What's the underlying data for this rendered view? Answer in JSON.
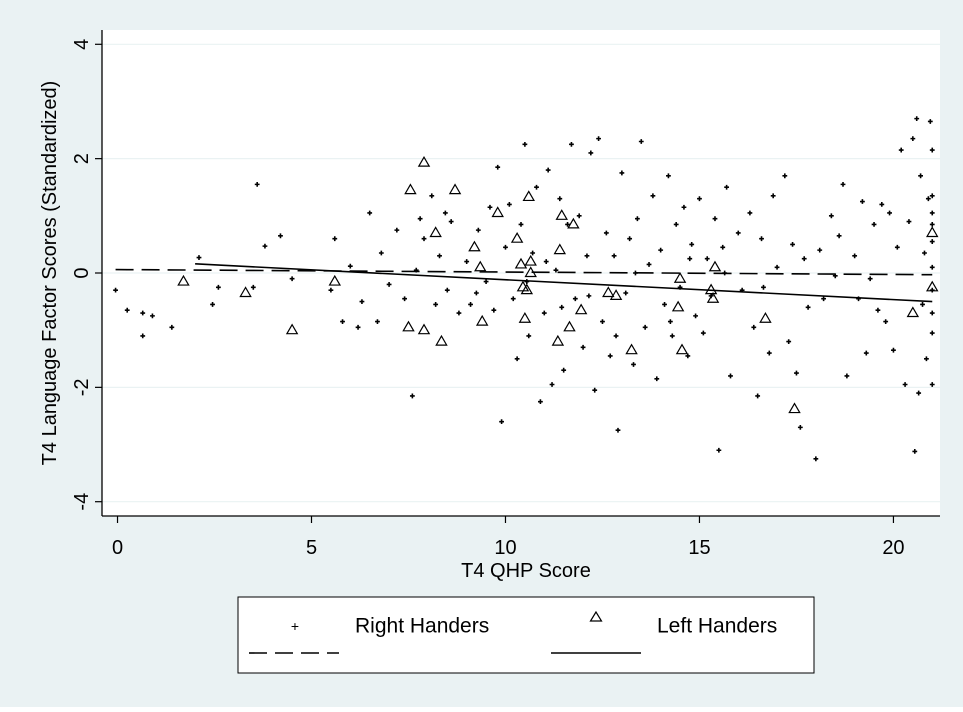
{
  "chart_data": {
    "type": "scatter",
    "xlabel": "T4 QHP Score",
    "ylabel": "T4 Language Factor Scores (Standardized)",
    "xlim": [
      -0.4,
      21.2
    ],
    "ylim": [
      -4.25,
      4.25
    ],
    "xticks": [
      0,
      5,
      10,
      15,
      20
    ],
    "yticks": [
      4,
      2,
      0,
      -2,
      -4
    ],
    "grid": true,
    "colors": {
      "outer_background": "#eaf2f3",
      "plot_background": "#ffffff",
      "grid": "#eaf2f3",
      "marks": "#000000"
    },
    "legend": {
      "placement": "bottom",
      "entries": [
        {
          "label": "Right Handers",
          "marker": "plus",
          "text": "Right Handers"
        },
        {
          "label": "Left Handers",
          "marker": "triangle",
          "text": "Left Handers"
        },
        {
          "label": "",
          "marker": "dashed-line"
        },
        {
          "label": "",
          "marker": "solid-line"
        }
      ]
    },
    "series": [
      {
        "name": "Right Handers",
        "marker": "plus",
        "points": [
          [
            -0.05,
            -0.3
          ],
          [
            0.25,
            -0.65
          ],
          [
            0.65,
            -1.1
          ],
          [
            0.65,
            -0.7
          ],
          [
            0.9,
            -0.75
          ],
          [
            1.4,
            -0.95
          ],
          [
            2.1,
            0.27
          ],
          [
            2.45,
            -0.55
          ],
          [
            2.6,
            -0.25
          ],
          [
            3.5,
            -0.25
          ],
          [
            3.6,
            1.55
          ],
          [
            3.8,
            0.47
          ],
          [
            4.2,
            0.65
          ],
          [
            4.5,
            -0.1
          ],
          [
            5.5,
            -0.3
          ],
          [
            5.6,
            0.6
          ],
          [
            5.8,
            -0.85
          ],
          [
            6.0,
            0.12
          ],
          [
            6.2,
            -0.95
          ],
          [
            6.3,
            -0.5
          ],
          [
            6.5,
            1.05
          ],
          [
            6.7,
            -0.85
          ],
          [
            6.8,
            0.35
          ],
          [
            7.0,
            -0.2
          ],
          [
            7.2,
            0.75
          ],
          [
            7.4,
            -0.45
          ],
          [
            7.6,
            -2.15
          ],
          [
            7.7,
            0.05
          ],
          [
            7.8,
            0.95
          ],
          [
            7.9,
            0.6
          ],
          [
            8.1,
            1.35
          ],
          [
            8.2,
            -0.55
          ],
          [
            8.3,
            0.3
          ],
          [
            8.5,
            -0.3
          ],
          [
            8.6,
            0.9
          ],
          [
            8.8,
            -0.7
          ],
          [
            9.0,
            0.2
          ],
          [
            9.1,
            -0.55
          ],
          [
            9.3,
            0.75
          ],
          [
            9.5,
            -0.15
          ],
          [
            9.6,
            1.15
          ],
          [
            9.7,
            -0.65
          ],
          [
            9.8,
            1.85
          ],
          [
            9.9,
            -2.6
          ],
          [
            10.0,
            0.45
          ],
          [
            10.1,
            1.2
          ],
          [
            10.2,
            -0.45
          ],
          [
            10.3,
            -1.5
          ],
          [
            10.4,
            0.85
          ],
          [
            10.5,
            2.25
          ],
          [
            10.6,
            -1.1
          ],
          [
            10.7,
            0.35
          ],
          [
            10.8,
            1.5
          ],
          [
            10.9,
            -2.25
          ],
          [
            11.0,
            -0.7
          ],
          [
            11.1,
            1.8
          ],
          [
            11.2,
            -1.95
          ],
          [
            11.3,
            0.05
          ],
          [
            11.4,
            1.3
          ],
          [
            11.5,
            -1.7
          ],
          [
            11.6,
            0.85
          ],
          [
            11.7,
            2.25
          ],
          [
            11.8,
            -0.45
          ],
          [
            11.9,
            1.0
          ],
          [
            12.0,
            -1.3
          ],
          [
            12.1,
            0.3
          ],
          [
            12.2,
            2.1
          ],
          [
            12.3,
            -2.05
          ],
          [
            12.4,
            2.35
          ],
          [
            12.5,
            -0.85
          ],
          [
            12.6,
            0.7
          ],
          [
            12.7,
            -1.45
          ],
          [
            12.8,
            0.3
          ],
          [
            12.9,
            -2.75
          ],
          [
            13.0,
            1.75
          ],
          [
            13.1,
            -0.35
          ],
          [
            13.2,
            0.6
          ],
          [
            13.3,
            -1.6
          ],
          [
            13.4,
            0.95
          ],
          [
            13.5,
            2.3
          ],
          [
            13.6,
            -0.95
          ],
          [
            13.7,
            0.15
          ],
          [
            13.8,
            1.35
          ],
          [
            13.9,
            -1.85
          ],
          [
            14.0,
            0.4
          ],
          [
            14.1,
            -0.55
          ],
          [
            14.2,
            1.7
          ],
          [
            14.3,
            -1.1
          ],
          [
            14.4,
            0.85
          ],
          [
            14.5,
            -0.25
          ],
          [
            14.6,
            1.15
          ],
          [
            14.7,
            -1.45
          ],
          [
            14.8,
            0.5
          ],
          [
            14.9,
            -0.75
          ],
          [
            15.0,
            1.3
          ],
          [
            15.1,
            -1.05
          ],
          [
            15.2,
            0.25
          ],
          [
            15.3,
            -0.4
          ],
          [
            15.4,
            0.95
          ],
          [
            15.5,
            -3.1
          ],
          [
            15.6,
            0.45
          ],
          [
            15.7,
            1.5
          ],
          [
            15.8,
            -1.8
          ],
          [
            16.0,
            0.7
          ],
          [
            16.1,
            -0.3
          ],
          [
            16.3,
            1.05
          ],
          [
            16.4,
            -0.95
          ],
          [
            16.5,
            -2.15
          ],
          [
            16.6,
            0.6
          ],
          [
            16.8,
            -1.4
          ],
          [
            16.9,
            1.35
          ],
          [
            17.0,
            0.1
          ],
          [
            17.2,
            1.7
          ],
          [
            17.3,
            -1.2
          ],
          [
            17.4,
            0.5
          ],
          [
            17.5,
            -1.75
          ],
          [
            17.6,
            -2.7
          ],
          [
            17.7,
            0.25
          ],
          [
            17.8,
            -0.6
          ],
          [
            18.0,
            -3.25
          ],
          [
            18.1,
            0.4
          ],
          [
            18.2,
            -0.45
          ],
          [
            18.4,
            1.0
          ],
          [
            18.5,
            -0.05
          ],
          [
            18.6,
            0.65
          ],
          [
            18.7,
            1.55
          ],
          [
            18.8,
            -1.8
          ],
          [
            19.0,
            0.3
          ],
          [
            19.1,
            -0.45
          ],
          [
            19.2,
            1.25
          ],
          [
            19.3,
            -1.4
          ],
          [
            19.4,
            -0.1
          ],
          [
            19.5,
            0.85
          ],
          [
            19.6,
            -0.65
          ],
          [
            19.7,
            1.2
          ],
          [
            19.8,
            -0.85
          ],
          [
            19.9,
            1.05
          ],
          [
            20.0,
            -1.35
          ],
          [
            20.1,
            0.45
          ],
          [
            20.2,
            2.15
          ],
          [
            20.3,
            -1.95
          ],
          [
            20.4,
            0.9
          ],
          [
            20.5,
            2.35
          ],
          [
            20.55,
            -3.12
          ],
          [
            20.6,
            2.7
          ],
          [
            20.65,
            -2.1
          ],
          [
            20.7,
            1.7
          ],
          [
            20.75,
            -0.55
          ],
          [
            20.8,
            0.35
          ],
          [
            20.85,
            -1.5
          ],
          [
            20.9,
            1.3
          ],
          [
            20.95,
            2.65
          ],
          [
            21.0,
            -1.95
          ],
          [
            21.0,
            2.15
          ],
          [
            21.0,
            1.35
          ],
          [
            21.0,
            1.05
          ],
          [
            21.0,
            0.85
          ],
          [
            21.0,
            0.55
          ],
          [
            21.0,
            0.1
          ],
          [
            21.0,
            -0.3
          ],
          [
            21.0,
            -0.7
          ],
          [
            21.0,
            -1.05
          ],
          [
            10.55,
            -0.15
          ],
          [
            11.05,
            0.2
          ],
          [
            12.15,
            -0.4
          ],
          [
            13.35,
            0.0
          ],
          [
            14.25,
            -0.85
          ],
          [
            15.65,
            0.0
          ],
          [
            8.45,
            1.05
          ],
          [
            9.25,
            -0.35
          ],
          [
            11.45,
            -0.6
          ],
          [
            12.85,
            -1.1
          ],
          [
            14.75,
            0.25
          ],
          [
            16.65,
            -0.25
          ]
        ]
      },
      {
        "name": "Left Handers",
        "marker": "triangle",
        "points": [
          [
            1.7,
            -0.15
          ],
          [
            3.3,
            -0.35
          ],
          [
            4.5,
            -1.0
          ],
          [
            5.6,
            -0.15
          ],
          [
            7.5,
            -0.95
          ],
          [
            7.55,
            1.45
          ],
          [
            7.9,
            1.93
          ],
          [
            7.9,
            -1.0
          ],
          [
            8.2,
            0.7
          ],
          [
            8.35,
            -1.2
          ],
          [
            8.7,
            1.45
          ],
          [
            9.2,
            0.45
          ],
          [
            9.35,
            0.1
          ],
          [
            9.4,
            -0.85
          ],
          [
            9.8,
            1.05
          ],
          [
            10.3,
            0.6
          ],
          [
            10.4,
            0.15
          ],
          [
            10.45,
            -0.25
          ],
          [
            10.5,
            -0.8
          ],
          [
            10.55,
            -0.3
          ],
          [
            10.6,
            1.33
          ],
          [
            10.65,
            0.2
          ],
          [
            10.65,
            0.0
          ],
          [
            11.35,
            -1.2
          ],
          [
            11.4,
            0.4
          ],
          [
            11.45,
            1.0
          ],
          [
            11.65,
            -0.95
          ],
          [
            11.75,
            0.85
          ],
          [
            11.95,
            -0.65
          ],
          [
            12.65,
            -0.35
          ],
          [
            12.85,
            -0.4
          ],
          [
            13.25,
            -1.35
          ],
          [
            14.45,
            -0.6
          ],
          [
            14.5,
            -0.1
          ],
          [
            14.55,
            -1.35
          ],
          [
            15.3,
            -0.3
          ],
          [
            15.35,
            -0.45
          ],
          [
            15.4,
            0.1
          ],
          [
            16.7,
            -0.8
          ],
          [
            17.45,
            -2.38
          ],
          [
            20.5,
            -0.7
          ],
          [
            21.0,
            0.7
          ],
          [
            21.0,
            -0.25
          ]
        ]
      },
      {
        "name": "",
        "marker": "dashed-line",
        "line": [
          [
            -0.05,
            0.06
          ],
          [
            21.0,
            -0.03
          ]
        ]
      },
      {
        "name": "",
        "marker": "solid-line",
        "line": [
          [
            2.0,
            0.16
          ],
          [
            21.0,
            -0.5
          ]
        ]
      }
    ]
  }
}
